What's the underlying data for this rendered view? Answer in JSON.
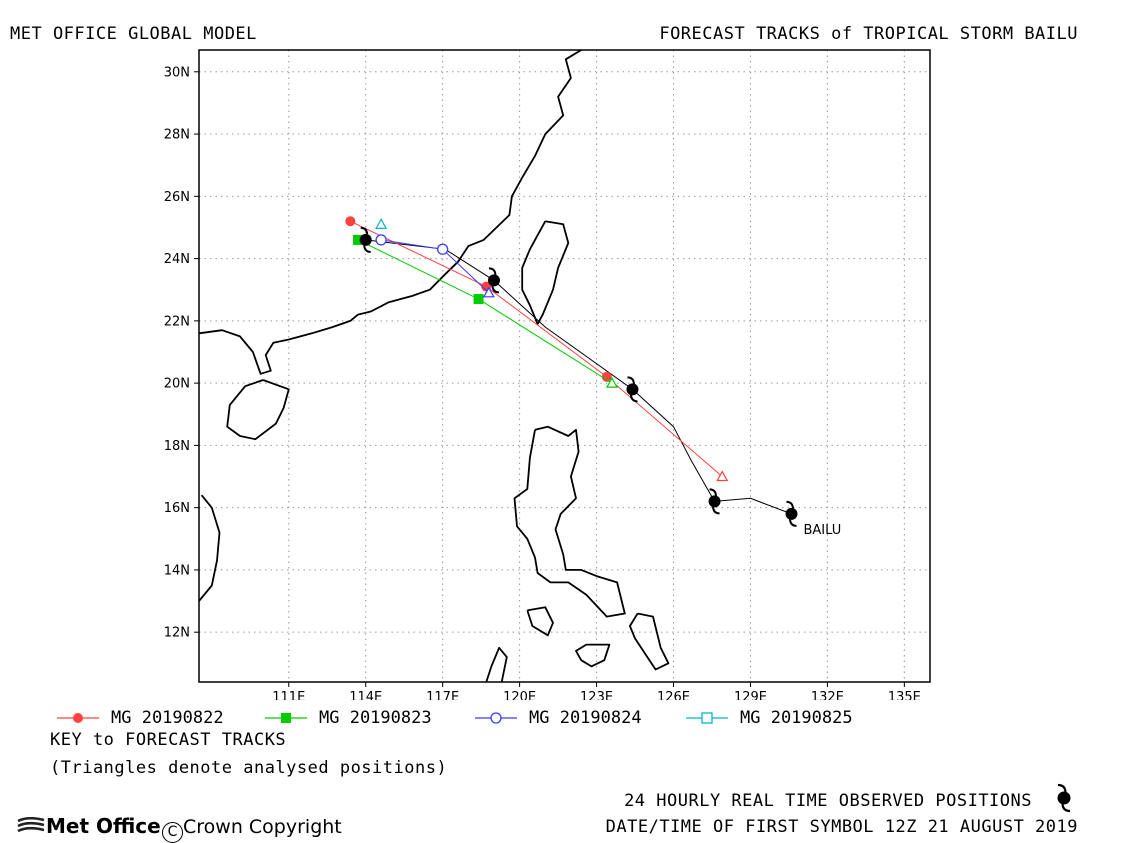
{
  "header": {
    "left_title": "MET OFFICE GLOBAL MODEL",
    "right_title": "FORECAST TRACKS of TROPICAL STORM BAILU"
  },
  "map": {
    "lon_range": [
      107.5,
      136
    ],
    "lat_range": [
      10.4,
      30.7
    ],
    "x_ticks": [
      {
        "value": 111,
        "label": "111E"
      },
      {
        "value": 114,
        "label": "114E"
      },
      {
        "value": 117,
        "label": "117E"
      },
      {
        "value": 120,
        "label": "120E"
      },
      {
        "value": 123,
        "label": "123E"
      },
      {
        "value": 126,
        "label": "126E"
      },
      {
        "value": 129,
        "label": "129E"
      },
      {
        "value": 132,
        "label": "132E"
      },
      {
        "value": 135,
        "label": "135E"
      }
    ],
    "y_ticks": [
      {
        "value": 12,
        "label": "12N"
      },
      {
        "value": 14,
        "label": "14N"
      },
      {
        "value": 16,
        "label": "16N"
      },
      {
        "value": 18,
        "label": "18N"
      },
      {
        "value": 20,
        "label": "20N"
      },
      {
        "value": 22,
        "label": "22N"
      },
      {
        "value": 24,
        "label": "24N"
      },
      {
        "value": 26,
        "label": "26N"
      },
      {
        "value": 28,
        "label": "28N"
      },
      {
        "value": 30,
        "label": "30N"
      }
    ],
    "grid": true,
    "storm_label": "BAILU",
    "observed_track": [
      [
        130.6,
        15.8
      ],
      [
        129.0,
        16.3
      ],
      [
        127.6,
        16.2
      ],
      [
        126.7,
        17.5
      ],
      [
        126.0,
        18.6
      ],
      [
        124.4,
        19.8
      ],
      [
        121.0,
        21.8
      ],
      [
        119.0,
        23.3
      ],
      [
        117.1,
        24.3
      ],
      [
        114.0,
        24.6
      ]
    ],
    "observed_positions": [
      [
        130.6,
        15.8
      ],
      [
        127.6,
        16.2
      ],
      [
        124.4,
        19.8
      ],
      [
        119.0,
        23.3
      ],
      [
        114.0,
        24.6
      ]
    ]
  },
  "forecast_tracks": [
    {
      "name": "MG 20190822",
      "color": "#ff4040",
      "marker": "circle-filled",
      "analysed": [
        127.9,
        17.0
      ],
      "points": [
        [
          127.9,
          17.0
        ],
        [
          123.4,
          20.2
        ],
        [
          118.7,
          23.1
        ],
        [
          113.4,
          25.2
        ]
      ]
    },
    {
      "name": "MG 20190823",
      "color": "#00cc00",
      "marker": "square-filled",
      "analysed": [
        123.6,
        20.0
      ],
      "points": [
        [
          123.6,
          20.0
        ],
        [
          118.4,
          22.7
        ],
        [
          113.7,
          24.6
        ]
      ]
    },
    {
      "name": "MG 20190824",
      "color": "#3a3aff",
      "marker": "circle-open",
      "analysed": [
        118.8,
        22.9
      ],
      "points": [
        [
          118.8,
          22.9
        ],
        [
          117.0,
          24.3
        ],
        [
          114.6,
          24.6
        ]
      ]
    },
    {
      "name": "MG 20190825",
      "color": "#00b8c8",
      "marker": "square-open",
      "analysed": [
        114.6,
        25.1
      ],
      "points": [
        [
          114.6,
          25.1
        ]
      ]
    }
  ],
  "key": {
    "title": "KEY to FORECAST TRACKS",
    "note": "(Triangles denote analysed positions)"
  },
  "footer": {
    "observed_text": "24 HOURLY REAL TIME OBSERVED POSITIONS",
    "date_text": "DATE/TIME OF FIRST SYMBOL 12Z 21 AUGUST 2019",
    "logo_text": "Met Office",
    "copyright_text": "Crown Copyright"
  },
  "coastlines": [
    [
      [
        123.0,
        31.0
      ],
      [
        121.8,
        30.4
      ],
      [
        122.0,
        29.8
      ],
      [
        121.5,
        29.2
      ],
      [
        121.7,
        28.6
      ],
      [
        121.0,
        28.0
      ],
      [
        120.6,
        27.3
      ],
      [
        120.1,
        26.6
      ],
      [
        119.7,
        26.0
      ],
      [
        119.6,
        25.4
      ],
      [
        119.1,
        25.0
      ],
      [
        118.6,
        24.6
      ],
      [
        118.0,
        24.4
      ],
      [
        117.6,
        23.9
      ],
      [
        117.1,
        23.5
      ],
      [
        116.5,
        23.0
      ],
      [
        115.8,
        22.8
      ],
      [
        114.9,
        22.6
      ],
      [
        114.2,
        22.3
      ],
      [
        113.7,
        22.2
      ],
      [
        113.4,
        22.0
      ],
      [
        112.7,
        21.8
      ],
      [
        111.9,
        21.6
      ],
      [
        111.0,
        21.4
      ],
      [
        110.4,
        21.3
      ],
      [
        110.1,
        20.9
      ],
      [
        110.3,
        20.4
      ],
      [
        109.9,
        20.3
      ],
      [
        109.6,
        21.0
      ],
      [
        109.1,
        21.5
      ],
      [
        108.4,
        21.7
      ],
      [
        107.5,
        21.6
      ]
    ],
    [
      [
        121.0,
        25.2
      ],
      [
        121.7,
        25.1
      ],
      [
        121.9,
        24.5
      ],
      [
        121.5,
        23.7
      ],
      [
        121.3,
        23.0
      ],
      [
        120.9,
        22.2
      ],
      [
        120.7,
        21.9
      ],
      [
        120.4,
        22.5
      ],
      [
        120.1,
        23.0
      ],
      [
        120.1,
        23.7
      ],
      [
        120.4,
        24.3
      ],
      [
        121.0,
        25.2
      ]
    ],
    [
      [
        110.0,
        20.1
      ],
      [
        111.0,
        19.8
      ],
      [
        110.8,
        19.2
      ],
      [
        110.5,
        18.7
      ],
      [
        109.7,
        18.2
      ],
      [
        109.1,
        18.3
      ],
      [
        108.6,
        18.6
      ],
      [
        108.7,
        19.3
      ],
      [
        109.3,
        19.9
      ],
      [
        110.0,
        20.1
      ]
    ],
    [
      [
        120.6,
        18.5
      ],
      [
        121.1,
        18.6
      ],
      [
        121.9,
        18.3
      ],
      [
        122.2,
        18.5
      ],
      [
        122.3,
        17.8
      ],
      [
        122.0,
        17.0
      ],
      [
        122.2,
        16.3
      ],
      [
        121.6,
        15.8
      ],
      [
        121.4,
        15.3
      ],
      [
        121.7,
        14.5
      ],
      [
        121.8,
        14.0
      ],
      [
        122.4,
        14.0
      ],
      [
        123.0,
        13.8
      ],
      [
        123.8,
        13.6
      ],
      [
        124.1,
        12.6
      ],
      [
        123.4,
        12.5
      ],
      [
        122.6,
        13.2
      ],
      [
        121.9,
        13.6
      ],
      [
        121.2,
        13.6
      ],
      [
        120.7,
        13.9
      ],
      [
        120.6,
        14.4
      ],
      [
        120.3,
        15.0
      ],
      [
        119.9,
        15.4
      ],
      [
        119.8,
        16.3
      ],
      [
        120.3,
        16.6
      ],
      [
        120.4,
        17.6
      ],
      [
        120.6,
        18.5
      ]
    ],
    [
      [
        120.3,
        12.7
      ],
      [
        121.0,
        12.8
      ],
      [
        121.3,
        12.3
      ],
      [
        121.1,
        11.9
      ],
      [
        120.5,
        12.2
      ],
      [
        120.3,
        12.7
      ]
    ],
    [
      [
        122.6,
        11.6
      ],
      [
        123.5,
        11.6
      ],
      [
        123.3,
        11.1
      ],
      [
        122.8,
        10.9
      ],
      [
        122.4,
        11.1
      ],
      [
        122.2,
        11.4
      ],
      [
        122.6,
        11.6
      ]
    ],
    [
      [
        124.6,
        12.6
      ],
      [
        125.2,
        12.5
      ],
      [
        125.5,
        11.5
      ],
      [
        125.8,
        11.0
      ],
      [
        125.3,
        10.8
      ],
      [
        124.9,
        11.3
      ],
      [
        124.5,
        11.8
      ],
      [
        124.3,
        12.2
      ],
      [
        124.6,
        12.6
      ]
    ],
    [
      [
        119.3,
        10.4
      ],
      [
        119.5,
        11.2
      ],
      [
        119.2,
        11.5
      ],
      [
        118.9,
        10.9
      ],
      [
        118.7,
        10.4
      ]
    ],
    [
      [
        107.5,
        13.0
      ],
      [
        108.0,
        13.5
      ],
      [
        108.2,
        14.3
      ],
      [
        108.3,
        15.2
      ],
      [
        108.0,
        16.0
      ],
      [
        107.6,
        16.4
      ]
    ]
  ]
}
